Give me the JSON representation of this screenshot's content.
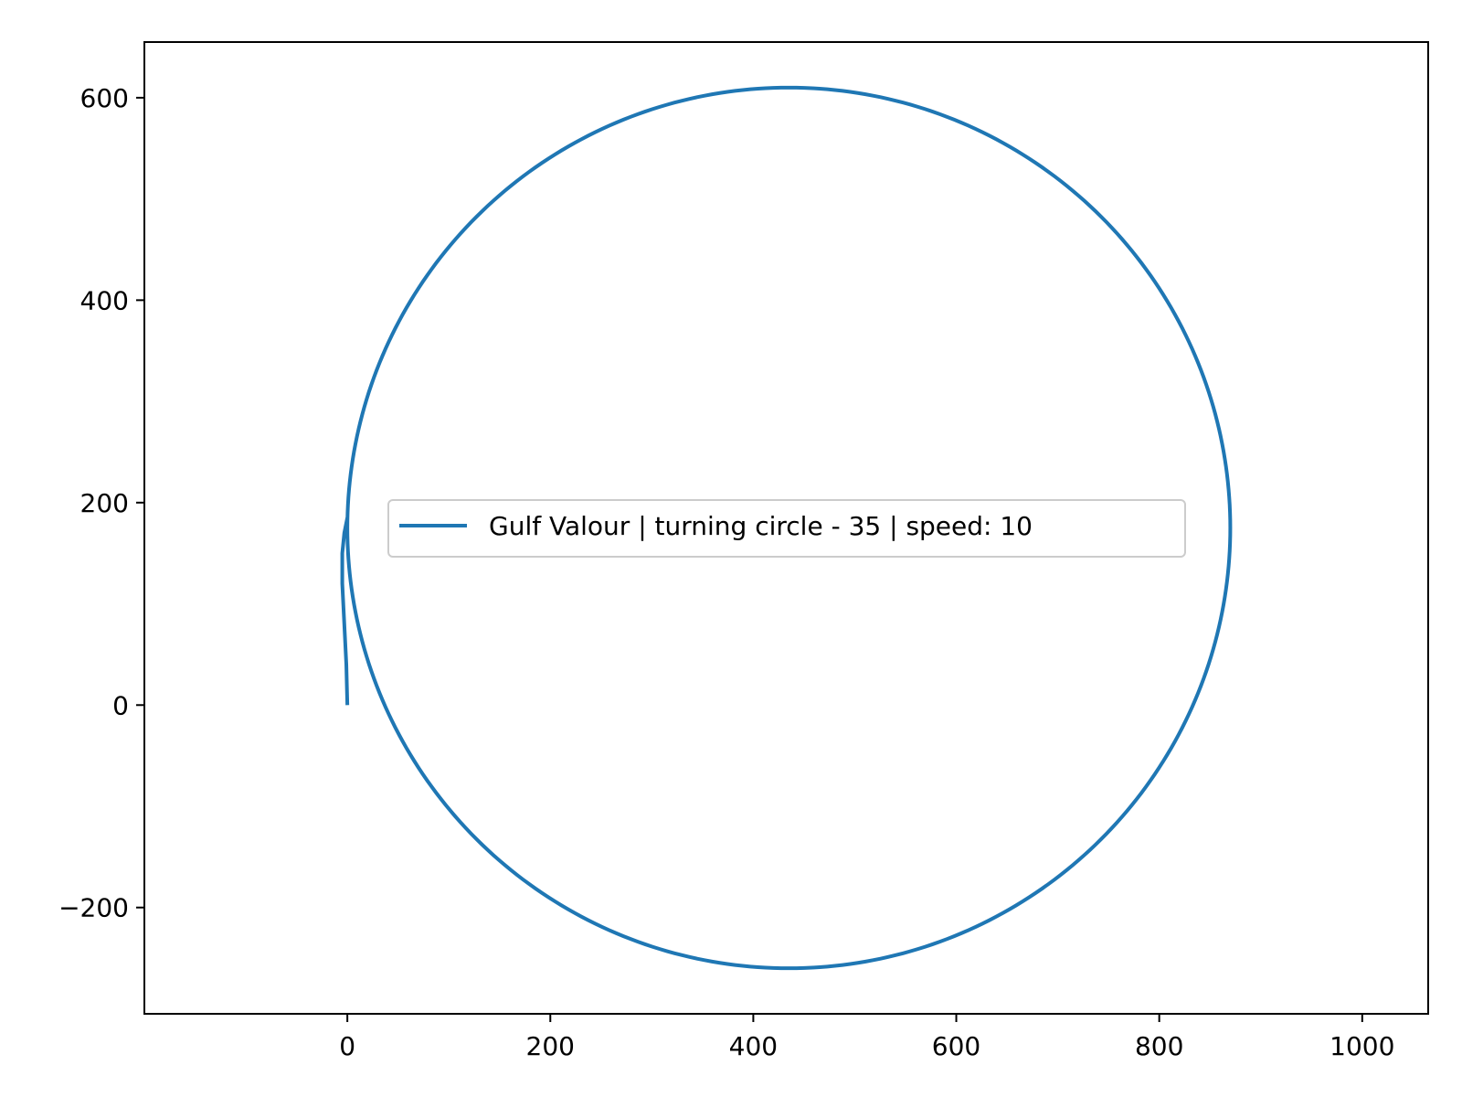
{
  "chart_data": {
    "type": "line",
    "title": "",
    "xlabel": "",
    "ylabel": "",
    "xlim": [
      -200,
      1065
    ],
    "ylim": [
      -305,
      655
    ],
    "xticks": [
      0,
      200,
      400,
      600,
      800,
      1000
    ],
    "yticks": [
      -200,
      0,
      200,
      400,
      600
    ],
    "xtick_labels": [
      "0",
      "200",
      "400",
      "600",
      "800",
      "1000"
    ],
    "ytick_labels": [
      "−200",
      "0",
      "200",
      "400",
      "600"
    ],
    "grid": false,
    "legend_position": "center",
    "series": [
      {
        "name": "Gulf Valour | turning circle - 35 | speed: 10",
        "color": "#1f77b4",
        "approach": {
          "x": [
            0,
            -1,
            -3,
            -5,
            -5,
            -3,
            0
          ],
          "y": [
            0,
            40,
            80,
            120,
            150,
            170,
            185
          ]
        },
        "circle": {
          "center": [
            435,
            175
          ],
          "radius": 435,
          "radius_y": 435,
          "loops": 1
        }
      }
    ]
  }
}
